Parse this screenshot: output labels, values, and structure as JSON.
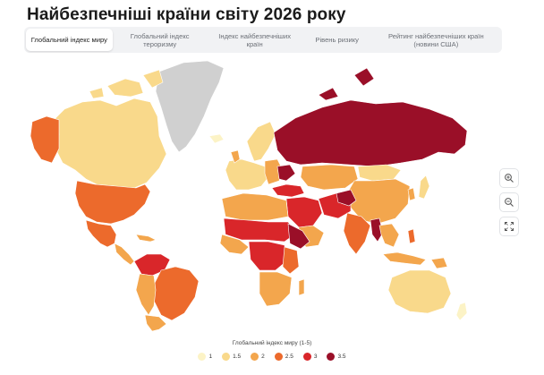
{
  "page": {
    "title": "Найбезпечніші країни світу 2026 року"
  },
  "tabs": [
    {
      "label": "Глобальний індекс миру",
      "active": true
    },
    {
      "label": "Глобальний індекс тероризму",
      "active": false
    },
    {
      "label": "Індекс найбезпечніших країн",
      "active": false
    },
    {
      "label": "Рівень ризику",
      "active": false
    },
    {
      "label": "Рейтинг найбезпечніших країн (новини США)",
      "active": false
    }
  ],
  "zoom_controls": [
    {
      "name": "zoom-in",
      "icon": "zoom-in-icon"
    },
    {
      "name": "zoom-out",
      "icon": "zoom-out-icon"
    },
    {
      "name": "fullscreen",
      "icon": "expand-icon"
    }
  ],
  "legend": {
    "title": "Глобальний індекс миру (1-5)",
    "items": [
      {
        "label": "1",
        "color": "#fcf3c6"
      },
      {
        "label": "1.5",
        "color": "#f9d98b"
      },
      {
        "label": "2",
        "color": "#f3a64d"
      },
      {
        "label": "2.5",
        "color": "#ec6a2c"
      },
      {
        "label": "3",
        "color": "#d9262a"
      },
      {
        "label": "3.5",
        "color": "#9a0f28"
      }
    ]
  },
  "map_colors": {
    "no_data": "#d0d0d0",
    "ocean": "#ffffff",
    "border": "#ffffff"
  }
}
